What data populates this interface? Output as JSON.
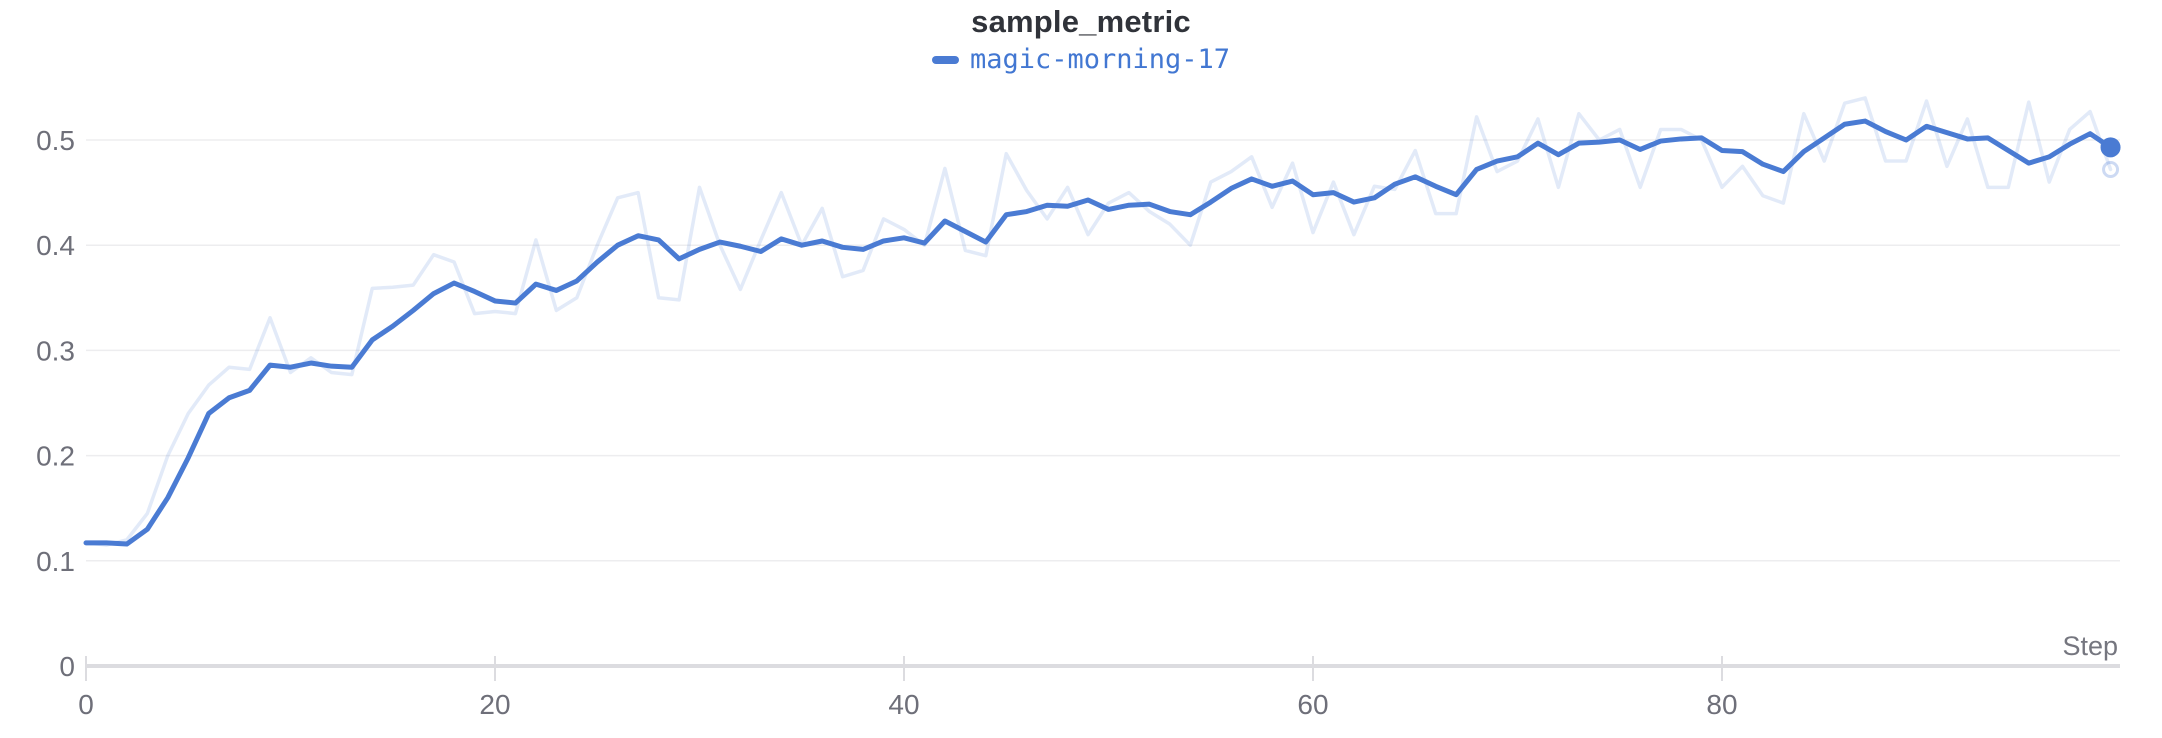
{
  "header": {
    "title": "sample_metric"
  },
  "legend": {
    "items": [
      {
        "label": "magic-morning-17",
        "color": "#4a7bd3"
      }
    ]
  },
  "axes": {
    "x_axis_label": "Step",
    "x_tick_labels": [
      "0",
      "20",
      "40",
      "60",
      "80"
    ],
    "y_tick_labels": [
      "0",
      "0.1",
      "0.2",
      "0.3",
      "0.4",
      "0.5"
    ]
  },
  "colors": {
    "accent_line": "#4a7bd3",
    "raw_line": "rgba(74,123,211,0.16)",
    "title_text": "#30333a",
    "tick_text": "#6e6f79",
    "axis_label_text": "#75767f",
    "gridline": "#ededef",
    "axis_line": "#dcdce0",
    "background": "#ffffff"
  },
  "chart_data": {
    "type": "line",
    "title": "sample_metric",
    "xlabel": "Step",
    "ylabel": "",
    "xlim": [
      0,
      99
    ],
    "ylim": [
      0,
      0.55
    ],
    "x_ticks": [
      0,
      20,
      40,
      60,
      80
    ],
    "y_ticks": [
      0,
      0.1,
      0.2,
      0.3,
      0.4,
      0.5
    ],
    "grid": "horizontal-only",
    "legend_position": "top-center",
    "x": [
      0,
      1,
      2,
      3,
      4,
      5,
      6,
      7,
      8,
      9,
      10,
      11,
      12,
      13,
      14,
      15,
      16,
      17,
      18,
      19,
      20,
      21,
      22,
      23,
      24,
      25,
      26,
      27,
      28,
      29,
      30,
      31,
      32,
      33,
      34,
      35,
      36,
      37,
      38,
      39,
      40,
      41,
      42,
      43,
      44,
      45,
      46,
      47,
      48,
      49,
      50,
      51,
      52,
      53,
      54,
      55,
      56,
      57,
      58,
      59,
      60,
      61,
      62,
      63,
      64,
      65,
      66,
      67,
      68,
      69,
      70,
      71,
      72,
      73,
      74,
      75,
      76,
      77,
      78,
      79,
      80,
      81,
      82,
      83,
      84,
      85,
      86,
      87,
      88,
      89,
      90,
      91,
      92,
      93,
      94,
      95,
      96,
      97,
      98,
      99
    ],
    "series": [
      {
        "name": "magic-morning-17",
        "style": "smoothed-solid",
        "color": "#4a7bd3",
        "end_marker": "filled-dot",
        "values": [
          0.117,
          0.117,
          0.116,
          0.13,
          0.16,
          0.198,
          0.24,
          0.255,
          0.262,
          0.286,
          0.284,
          0.288,
          0.285,
          0.284,
          0.31,
          0.323,
          0.338,
          0.354,
          0.364,
          0.356,
          0.347,
          0.345,
          0.363,
          0.357,
          0.366,
          0.384,
          0.4,
          0.409,
          0.405,
          0.387,
          0.396,
          0.403,
          0.399,
          0.394,
          0.406,
          0.4,
          0.404,
          0.398,
          0.396,
          0.404,
          0.407,
          0.402,
          0.423,
          0.413,
          0.403,
          0.429,
          0.432,
          0.438,
          0.437,
          0.443,
          0.434,
          0.438,
          0.439,
          0.432,
          0.429,
          0.441,
          0.454,
          0.463,
          0.456,
          0.461,
          0.448,
          0.45,
          0.441,
          0.445,
          0.458,
          0.465,
          0.456,
          0.448,
          0.472,
          0.48,
          0.484,
          0.497,
          0.486,
          0.497,
          0.498,
          0.5,
          0.491,
          0.499,
          0.501,
          0.502,
          0.49,
          0.489,
          0.477,
          0.47,
          0.489,
          0.502,
          0.515,
          0.518,
          0.508,
          0.5,
          0.513,
          0.507,
          0.501,
          0.502,
          0.49,
          0.478,
          0.484,
          0.496,
          0.506,
          0.493
        ]
      },
      {
        "name": "magic-morning-17 (original)",
        "style": "raw-faint",
        "color": "rgba(74,123,211,0.16)",
        "end_marker": "ring",
        "values": [
          0.117,
          0.115,
          0.12,
          0.145,
          0.2,
          0.24,
          0.267,
          0.284,
          0.282,
          0.331,
          0.279,
          0.293,
          0.279,
          0.277,
          0.359,
          0.36,
          0.362,
          0.391,
          0.384,
          0.335,
          0.337,
          0.335,
          0.405,
          0.338,
          0.35,
          0.4,
          0.445,
          0.45,
          0.35,
          0.348,
          0.455,
          0.4,
          0.358,
          0.405,
          0.45,
          0.4,
          0.435,
          0.37,
          0.376,
          0.425,
          0.415,
          0.4,
          0.473,
          0.395,
          0.39,
          0.487,
          0.452,
          0.425,
          0.455,
          0.41,
          0.44,
          0.45,
          0.432,
          0.42,
          0.4,
          0.46,
          0.47,
          0.484,
          0.436,
          0.478,
          0.412,
          0.46,
          0.41,
          0.456,
          0.453,
          0.49,
          0.43,
          0.43,
          0.522,
          0.47,
          0.48,
          0.52,
          0.455,
          0.525,
          0.5,
          0.51,
          0.455,
          0.51,
          0.51,
          0.5,
          0.455,
          0.475,
          0.447,
          0.44,
          0.525,
          0.48,
          0.535,
          0.54,
          0.48,
          0.48,
          0.537,
          0.475,
          0.52,
          0.455,
          0.455,
          0.536,
          0.46,
          0.51,
          0.527,
          0.472
        ]
      }
    ]
  }
}
